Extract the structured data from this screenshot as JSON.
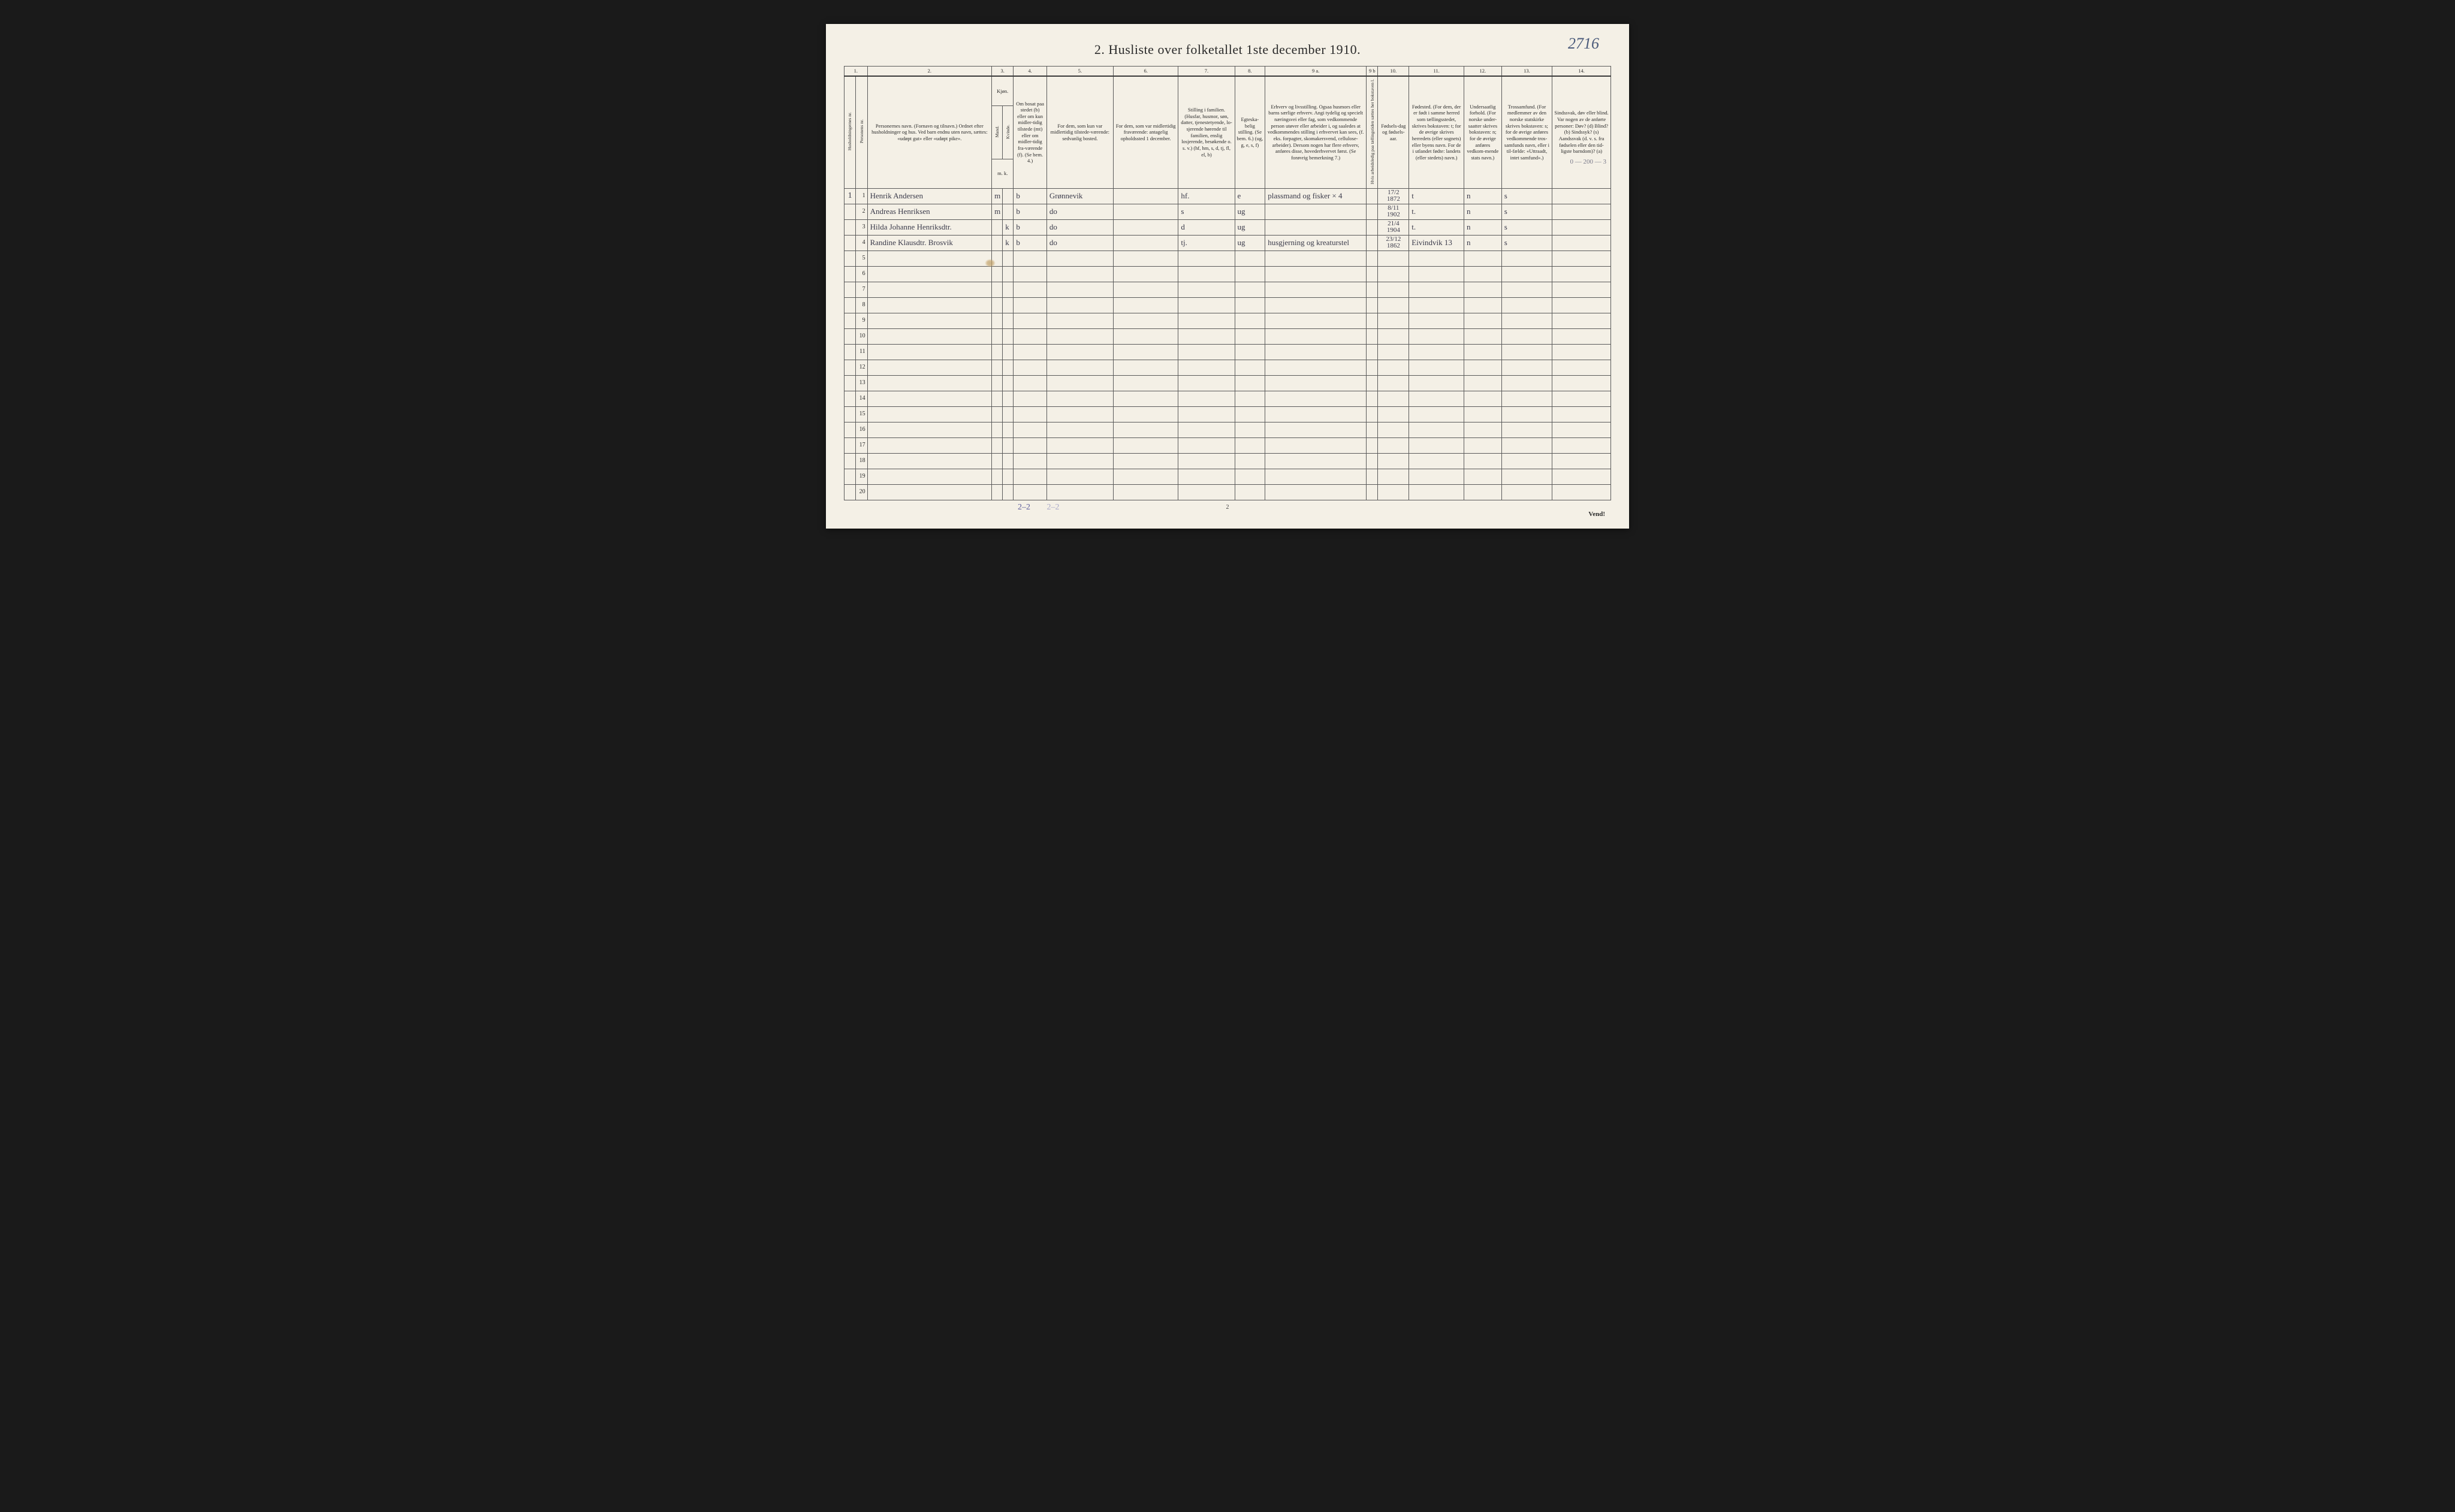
{
  "page": {
    "title": "2.  Husliste over folketallet 1ste december 1910.",
    "corner_annotation": "2716",
    "footer_tally": "2–2",
    "footer_tally_faint": "2–2",
    "page_number": "2",
    "vend": "Vend!",
    "side_note": "0 — 200 — 3",
    "background_color": "#f4f0e6",
    "border_color": "#5a5a5a",
    "handwriting_color": "#3a3a4a"
  },
  "columns": {
    "numbers": [
      "1.",
      "2.",
      "3.",
      "4.",
      "5.",
      "6.",
      "7.",
      "8.",
      "9 a.",
      "9 b",
      "10.",
      "11.",
      "12.",
      "13.",
      "14."
    ],
    "headers": {
      "c1a": "Husholdningernes nr.",
      "c1b": "Personens nr.",
      "c2": "Personernes navn.\n(Fornavn og tilnavn.)\nOrdnet efter husholdninger og hus.\nVed barn endnu uten navn, sættes: «udøpt gut» eller «udøpt pike».",
      "c3": "Kjøn.",
      "c3a": "Mand.",
      "c3b": "Kvinde.",
      "c3mk": "m.  k.",
      "c4": "Om bosat paa stedet (b) eller om kun midler-tidig tilstede (mt) eller om midler-tidig fra-værende (f). (Se bem. 4.)",
      "c5": "For dem, som kun var midlertidig tilstede-værende:\nsedvanlig bosted.",
      "c6": "For dem, som var midlertidig fraværende:\nantagelig opholdssted 1 december.",
      "c7": "Stilling i familien.\n(Husfar, husmor, søn, datter, tjenestetyende, lo-sjerende hørende til familien, enslig losjerende, besøkende o. s. v.)\n(hf, hm, s, d, tj, fl, el, b)",
      "c8": "Egteska-belig stilling.\n(Se bem. 6.)\n(ug, g, e, s, f)",
      "c9a": "Erhverv og livsstilling.\nOgsaa husmors eller barns særlige erhverv. Angi tydelig og specielt næringsvei eller fag, som vedkommende person utøver eller arbeider i, og saaledes at vedkommendes stilling i erhvervet kan sees, (f. eks. forpagter, skomakersvend, cellulose-arbeider). Dersom nogen har flere erhverv, anføres disse, hovederhvervet først.\n(Se forøvrig bemerkning 7.)",
      "c9b": "Hvis arbeidsledig paa tællingstiden sættes her bokstaven l.",
      "c10": "Fødsels-dag og fødsels-aar.",
      "c11": "Fødested.\n(For dem, der er født i samme herred som tællingsstedet, skrives bokstaven: t; for de øvrige skrives herredets (eller sognets) eller byens navn. For de i utlandet fødte: landets (eller stedets) navn.)",
      "c12": "Undersaatlig forhold.\n(For norske under-saatter skrives bokstaven: n; for de øvrige anføres vedkom-mende stats navn.)",
      "c13": "Trossamfund.\n(For medlemmer av den norske statskirke skrives bokstaven: s; for de øvrige anføres vedkommende tros-samfunds navn, eller i til-fælde: «Uttraadt, intet samfund».)",
      "c14": "Sindssvak, døv eller blind.\nVar nogen av de anførte personer:\nDøv?        (d)\nBlind?       (b)\nSindssyk?  (s)\nAandssvak (d. v. s. fra fødselen eller den tid-ligste barndom)? (a)"
    },
    "widths_pct": [
      1.6,
      1.6,
      17.2,
      1.5,
      1.5,
      4.6,
      9.2,
      9.0,
      7.8,
      4.2,
      14.0,
      1.6,
      4.3,
      7.6,
      5.2,
      7.0,
      8.1
    ]
  },
  "rows": [
    {
      "hh": "1",
      "num": "1",
      "name": "Henrik Andersen",
      "m": "m",
      "k": "",
      "bosat": "b",
      "c5": "Grønnevik",
      "c6": "",
      "c7": "hf.",
      "c8": "e",
      "c9a": "plassmand og fisker   × 4",
      "c9b": "",
      "c10": "17/2\n1872",
      "c11": "t",
      "c12": "n",
      "c13": "s",
      "c14": ""
    },
    {
      "hh": "",
      "num": "2",
      "name": "Andreas Henriksen",
      "m": "m",
      "k": "",
      "bosat": "b",
      "c5": "do",
      "c6": "",
      "c7": "s",
      "c8": "ug",
      "c9a": "",
      "c9b": "",
      "c10": "8/11\n1902",
      "c11": "t.",
      "c12": "n",
      "c13": "s",
      "c14": ""
    },
    {
      "hh": "",
      "num": "3",
      "name": "Hilda Johanne Henriksdtr.",
      "m": "",
      "k": "k",
      "bosat": "b",
      "c5": "do",
      "c6": "",
      "c7": "d",
      "c8": "ug",
      "c9a": "",
      "c9b": "",
      "c10": "21/4\n1904",
      "c11": "t.",
      "c12": "n",
      "c13": "s",
      "c14": ""
    },
    {
      "hh": "",
      "num": "4",
      "name": "Randine Klausdtr. Brosvik",
      "m": "",
      "k": "k",
      "bosat": "b",
      "c5": "do",
      "c6": "",
      "c7": "tj.",
      "c8": "ug",
      "c9a": "husgjerning og kreaturstel",
      "c9b": "",
      "c10": "23/12\n1862",
      "c11": "Eivindvik 13",
      "c12": "n",
      "c13": "s",
      "c14": ""
    },
    {
      "hh": "",
      "num": "5"
    },
    {
      "hh": "",
      "num": "6"
    },
    {
      "hh": "",
      "num": "7"
    },
    {
      "hh": "",
      "num": "8"
    },
    {
      "hh": "",
      "num": "9"
    },
    {
      "hh": "",
      "num": "10"
    },
    {
      "hh": "",
      "num": "11"
    },
    {
      "hh": "",
      "num": "12"
    },
    {
      "hh": "",
      "num": "13"
    },
    {
      "hh": "",
      "num": "14"
    },
    {
      "hh": "",
      "num": "15"
    },
    {
      "hh": "",
      "num": "16"
    },
    {
      "hh": "",
      "num": "17"
    },
    {
      "hh": "",
      "num": "18"
    },
    {
      "hh": "",
      "num": "19"
    },
    {
      "hh": "",
      "num": "20"
    }
  ]
}
